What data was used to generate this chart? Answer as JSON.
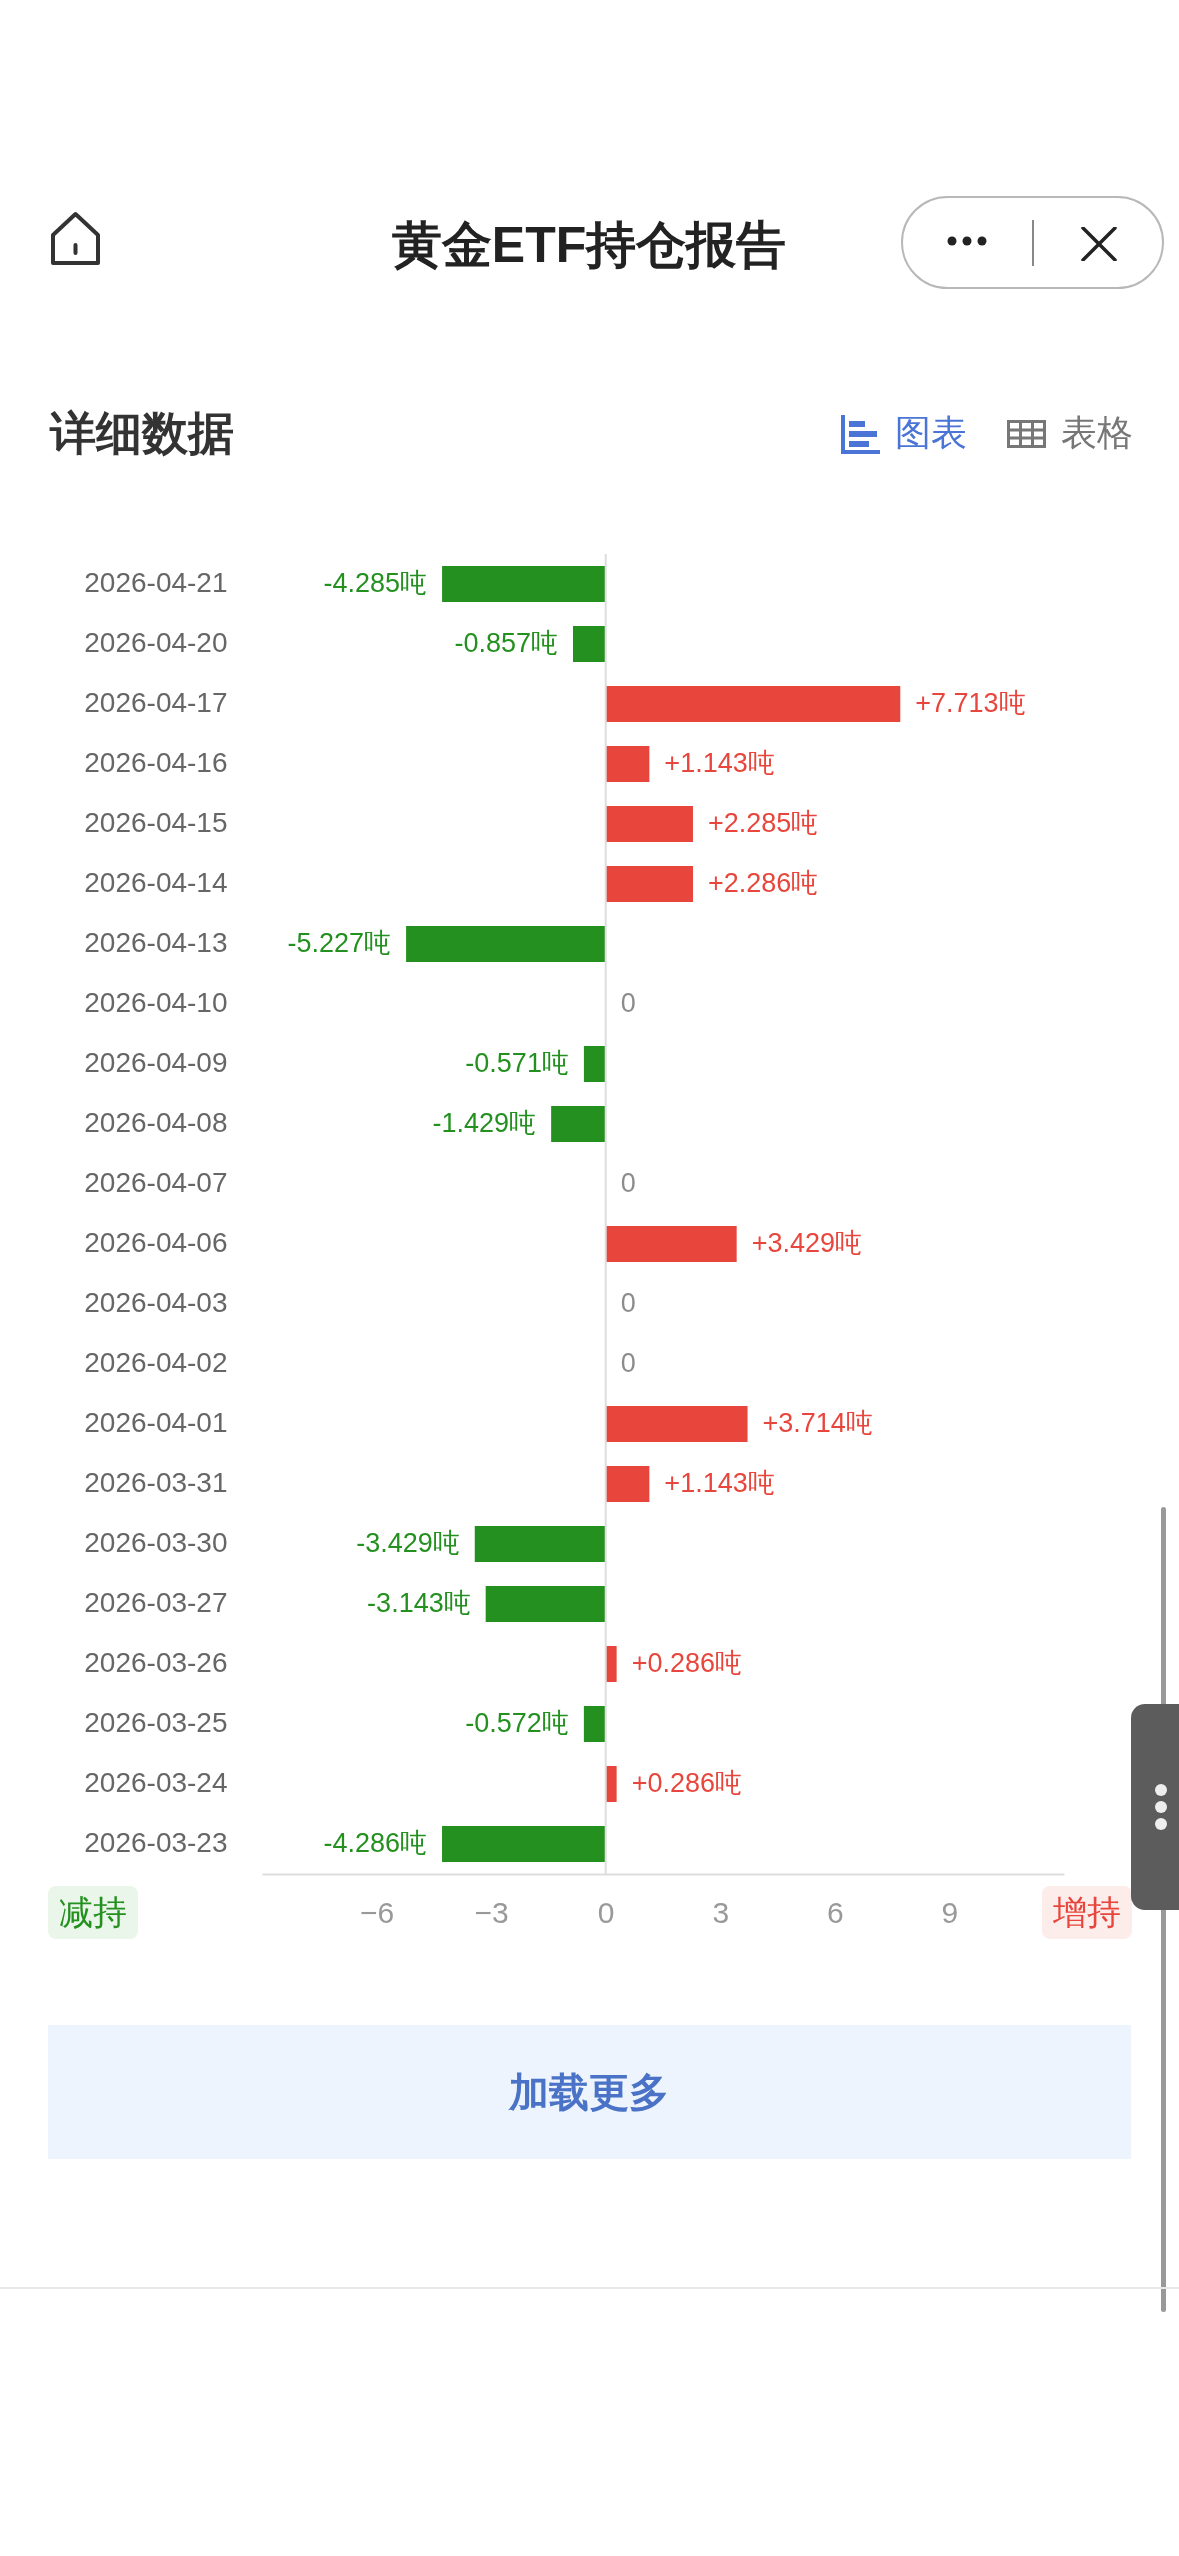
{
  "chart_data": {
    "type": "bar",
    "orientation": "horizontal",
    "title": "黄金ETF持仓报告",
    "subtitle": "详细数据",
    "categories": [
      "2026-04-21",
      "2026-04-20",
      "2026-04-17",
      "2026-04-16",
      "2026-04-15",
      "2026-04-14",
      "2026-04-13",
      "2026-04-10",
      "2026-04-09",
      "2026-04-08",
      "2026-04-07",
      "2026-04-06",
      "2026-04-03",
      "2026-04-02",
      "2026-04-01",
      "2026-03-31",
      "2026-03-30",
      "2026-03-27",
      "2026-03-26",
      "2026-03-25",
      "2026-03-24",
      "2026-03-23"
    ],
    "values": [
      -4.285,
      -0.857,
      7.713,
      1.143,
      2.285,
      2.286,
      -5.227,
      0,
      -0.571,
      -1.429,
      0,
      3.429,
      0,
      0,
      3.714,
      1.143,
      -3.429,
      -3.143,
      0.286,
      -0.572,
      0.286,
      -4.286
    ],
    "value_labels": [
      "-4.285吨",
      "-0.857吨",
      "+7.713吨",
      "+1.143吨",
      "+2.285吨",
      "+2.286吨",
      "-5.227吨",
      "0",
      "-0.571吨",
      "-1.429吨",
      "0",
      "+3.429吨",
      "0",
      "0",
      "+3.714吨",
      "+1.143吨",
      "-3.429吨",
      "-3.143吨",
      "+0.286吨",
      "-0.572吨",
      "+0.286吨",
      "-4.286吨"
    ],
    "colors": [
      "#23901f",
      "#23901f",
      "#e8463c",
      "#e8463c",
      "#e8463c",
      "#e8463c",
      "#23901f",
      "#8c8c8c",
      "#23901f",
      "#23901f",
      "#8c8c8c",
      "#e8463c",
      "#8c8c8c",
      "#8c8c8c",
      "#e8463c",
      "#e8463c",
      "#23901f",
      "#23901f",
      "#e8463c",
      "#23901f",
      "#e8463c",
      "#23901f"
    ],
    "xlim": [
      -9,
      12
    ],
    "xticks": [
      -6,
      -3,
      0,
      3,
      6,
      9
    ],
    "ref_lines": [
      {
        "axis": "x",
        "value": 0,
        "color": "#dddddd"
      }
    ],
    "annotations": [
      "减持",
      "增持",
      "图表",
      "表格",
      "加载更多"
    ]
  }
}
